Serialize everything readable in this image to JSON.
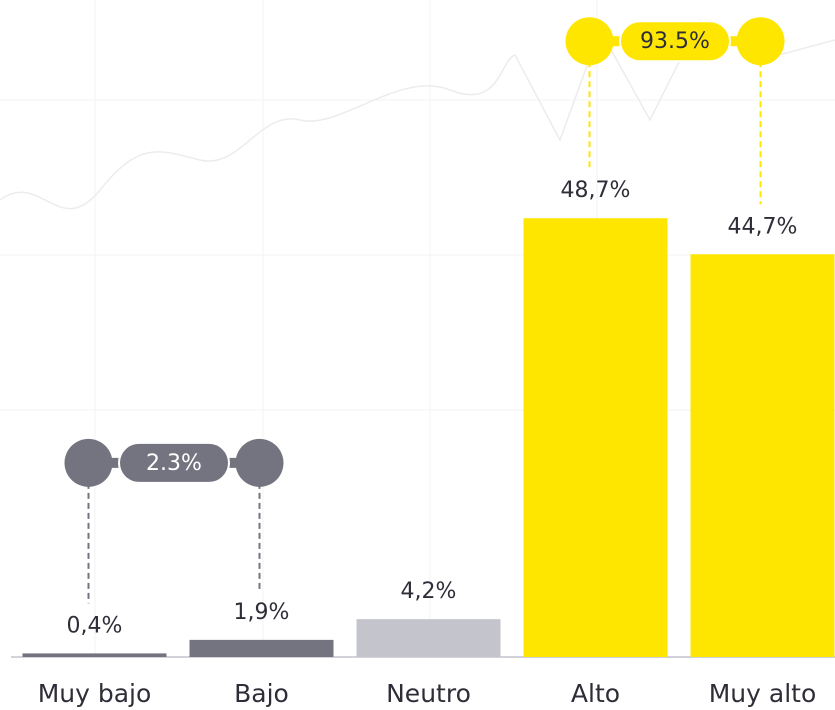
{
  "chart_data": {
    "type": "bar",
    "categories": [
      "Muy bajo",
      "Bajo",
      "Neutro",
      "Alto",
      "Muy alto"
    ],
    "values": [
      0.4,
      1.9,
      4.2,
      48.7,
      44.7
    ],
    "value_labels": [
      "0,4%",
      "1,9%",
      "4,2%",
      "48,7%",
      "44,7%"
    ],
    "colors": [
      "#747480",
      "#747480",
      "#c4c4cd",
      "#ffe600",
      "#ffe600"
    ],
    "ylim": [
      0,
      50
    ],
    "annotations": [
      {
        "text": "2.3%",
        "from": "Muy bajo",
        "to": "Bajo",
        "color": "#747480",
        "text_color": "#ffffff"
      },
      {
        "text": "93.5%",
        "from": "Alto",
        "to": "Muy alto",
        "color": "#ffe600",
        "text_color": "#2e2e38"
      }
    ]
  }
}
